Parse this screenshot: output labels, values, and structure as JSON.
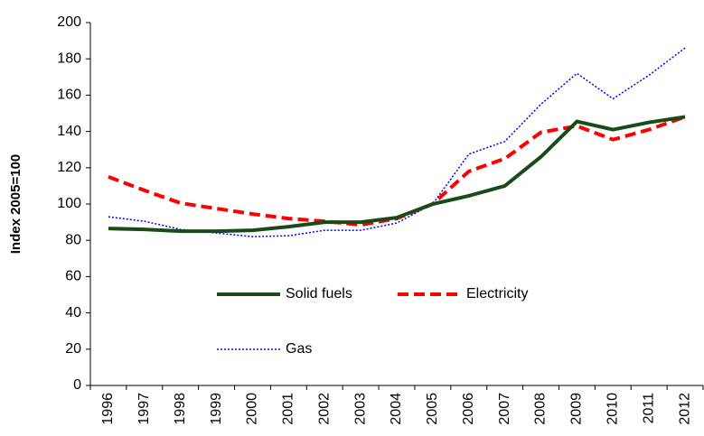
{
  "chart_data": {
    "type": "line",
    "y_label": "Index 2005=100",
    "categories": [
      "1996",
      "1997",
      "1998",
      "1999",
      "2000",
      "2001",
      "2002",
      "2003",
      "2004",
      "2005",
      "2006",
      "2007",
      "2008",
      "2009",
      "2010",
      "2011",
      "2012"
    ],
    "series": [
      {
        "name": "Solid fuels",
        "color": "#1a4a1a",
        "style": "solid",
        "values": [
          86.5,
          86,
          85,
          85,
          85.5,
          87.5,
          90,
          90,
          92.5,
          100,
          104.5,
          110,
          126,
          145.5,
          141,
          145,
          148
        ]
      },
      {
        "name": "Electricity",
        "color": "#ff0000",
        "style": "dashed",
        "values": [
          115,
          107.5,
          100.5,
          97.5,
          94.5,
          92,
          90.5,
          88.5,
          92,
          100,
          118,
          125,
          139.5,
          143,
          135.5,
          141,
          148
        ]
      },
      {
        "name": "Gas",
        "color": "#0000ff",
        "style": "dotted",
        "values": [
          93,
          90.5,
          86,
          84,
          82,
          82.5,
          85.5,
          85.5,
          89.5,
          100,
          127.5,
          134.5,
          155,
          172,
          158,
          171,
          186
        ]
      }
    ],
    "ylim": [
      0,
      200
    ],
    "yticks": [
      0,
      20,
      40,
      60,
      80,
      100,
      120,
      140,
      160,
      180,
      200
    ],
    "grid": false
  }
}
